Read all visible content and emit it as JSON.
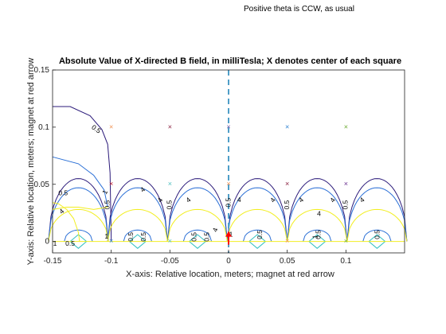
{
  "header_note": "Positive theta is CCW, as usual",
  "chart_data": {
    "type": "contour",
    "title": "Absolute Value of X-directed B field, in milliTesla;  X denotes center of each square",
    "xlabel": "X-axis: Relative location, meters;  magnet at red arrow",
    "ylabel": "Y-axis: Relative location, meters;  magnet at red arrow",
    "xlim": [
      -0.15,
      0.15
    ],
    "ylim": [
      -0.01,
      0.15
    ],
    "xticks": [
      -0.15,
      -0.1,
      -0.05,
      0,
      0.05,
      0.1
    ],
    "xtick_labels": [
      "-0.15",
      "-0.1",
      "-0.05",
      "0",
      "0.05",
      "0.1"
    ],
    "yticks": [
      0,
      0.05,
      0.1,
      0.15
    ],
    "ytick_labels": [
      "0",
      "0.05",
      "0.1",
      "0.15"
    ],
    "grid": false,
    "contour_levels": [
      {
        "level": 0.5,
        "color": "#2b1a7a"
      },
      {
        "level": 1,
        "color": "#2a6fd6"
      },
      {
        "level": 4,
        "color": "#f2ee21"
      }
    ],
    "magnet_arrow": {
      "x": 0,
      "y": 0,
      "color": "#ff0000"
    },
    "dashed_line": {
      "x": 0,
      "color": "#4f9ec8"
    },
    "square_centers": [
      {
        "x": -0.1,
        "y": 0.1,
        "color": "#f09050"
      },
      {
        "x": -0.05,
        "y": 0.1,
        "color": "#8a2040"
      },
      {
        "x": 0,
        "y": 0.1,
        "color": "#6a5aa8"
      },
      {
        "x": 0.05,
        "y": 0.1,
        "color": "#2a7fd0"
      },
      {
        "x": 0.1,
        "y": 0.1,
        "color": "#6aaa30"
      },
      {
        "x": -0.1,
        "y": 0.05,
        "color": "#c02030"
      },
      {
        "x": -0.05,
        "y": 0.05,
        "color": "#50c0c0"
      },
      {
        "x": 0,
        "y": 0.05,
        "color": "#f09050"
      },
      {
        "x": 0.05,
        "y": 0.05,
        "color": "#8a2040"
      },
      {
        "x": 0.1,
        "y": 0.05,
        "color": "#6a3090"
      },
      {
        "x": -0.1,
        "y": 0,
        "color": "#2a7fd0"
      },
      {
        "x": -0.05,
        "y": 0,
        "color": "#50c0c0"
      },
      {
        "x": 0.05,
        "y": 0,
        "color": "#f09050"
      },
      {
        "x": 0.1,
        "y": 0,
        "color": "#6aaa30"
      }
    ],
    "contour_labels": [
      {
        "text": "0.5",
        "x": -0.113,
        "y": 0.098,
        "rot": 35
      },
      {
        "text": "0.5",
        "x": -0.141,
        "y": 0.042,
        "rot": 0
      },
      {
        "text": "4",
        "x": -0.142,
        "y": 0.026,
        "rot": -40
      },
      {
        "text": "0.5",
        "x": -0.135,
        "y": -0.002,
        "rot": 0
      },
      {
        "text": "1",
        "x": -0.148,
        "y": -0.002,
        "rot": 0
      },
      {
        "text": "1",
        "x": -0.105,
        "y": 0.043,
        "rot": -65
      },
      {
        "text": "0.5",
        "x": -0.103,
        "y": 0.032,
        "rot": -90
      },
      {
        "text": "1",
        "x": -0.104,
        "y": 0.004,
        "rot": 0
      },
      {
        "text": "4",
        "x": -0.073,
        "y": 0.045,
        "rot": -40
      },
      {
        "text": "4",
        "x": -0.058,
        "y": 0.036,
        "rot": -55
      },
      {
        "text": "4",
        "x": -0.034,
        "y": 0.036,
        "rot": -40
      },
      {
        "text": "0.5",
        "x": -0.05,
        "y": 0.032,
        "rot": -90
      },
      {
        "text": "0.5",
        "x": -0.083,
        "y": 0.004,
        "rot": -90
      },
      {
        "text": "0.5",
        "x": -0.072,
        "y": 0.004,
        "rot": -90
      },
      {
        "text": "0.5",
        "x": -0.029,
        "y": 0.004,
        "rot": -90
      },
      {
        "text": "0.5",
        "x": -0.018,
        "y": 0.004,
        "rot": -90
      },
      {
        "text": "4",
        "x": -0.011,
        "y": 0.01,
        "rot": -70
      },
      {
        "text": "0.5",
        "x": 0,
        "y": 0.034,
        "rot": -90
      },
      {
        "text": "4",
        "x": 0.009,
        "y": 0.036,
        "rot": 0
      },
      {
        "text": "4",
        "x": 0.038,
        "y": 0.036,
        "rot": -55
      },
      {
        "text": "0.5",
        "x": 0.05,
        "y": 0.032,
        "rot": -90
      },
      {
        "text": "4",
        "x": 0.062,
        "y": 0.036,
        "rot": -40
      },
      {
        "text": "4",
        "x": 0.077,
        "y": 0.024,
        "rot": 0
      },
      {
        "text": "4",
        "x": 0.089,
        "y": 0.036,
        "rot": -55
      },
      {
        "text": "0.5",
        "x": 0.1,
        "y": 0.032,
        "rot": -90
      },
      {
        "text": "4",
        "x": 0.114,
        "y": 0.036,
        "rot": -40
      },
      {
        "text": "0.5",
        "x": 0.027,
        "y": 0.006,
        "rot": -90
      },
      {
        "text": "0.5",
        "x": 0.077,
        "y": 0.006,
        "rot": -90
      },
      {
        "text": "1",
        "x": 0.074,
        "y": 0.004,
        "rot": -90
      },
      {
        "text": "0.5",
        "x": 0.127,
        "y": 0.006,
        "rot": -90
      },
      {
        "text": "1",
        "x": 0.002,
        "y": 0.006,
        "rot": 0
      }
    ]
  }
}
